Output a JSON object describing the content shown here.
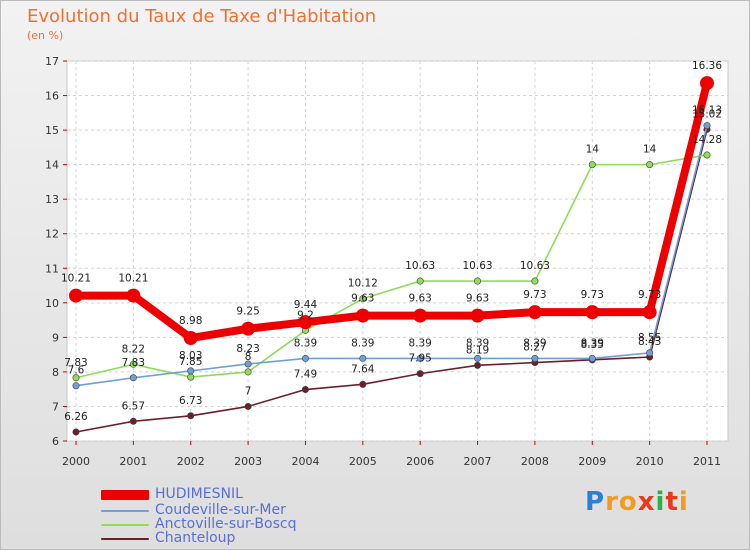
{
  "header": {
    "title": "Evolution du Taux de Taxe d'Habitation",
    "subtitle": "(en %)"
  },
  "chart_data": {
    "type": "line",
    "categories": [
      "2000",
      "2001",
      "2002",
      "2003",
      "2004",
      "2005",
      "2006",
      "2007",
      "2008",
      "2009",
      "2010",
      "2011"
    ],
    "y_ticks": [
      "6",
      "7",
      "8",
      "9",
      "10",
      "11",
      "12",
      "13",
      "14",
      "15",
      "16",
      "17"
    ],
    "ylim": [
      6,
      17
    ],
    "grid": true,
    "legend_position": "bottom-left",
    "series": [
      {
        "name": "HUDIMESNIL",
        "color": "#ee0000",
        "values": [
          10.21,
          10.21,
          8.98,
          9.25,
          9.44,
          9.63,
          9.63,
          9.63,
          9.73,
          9.73,
          9.73,
          16.36
        ],
        "labels": [
          "10.21",
          "10.21",
          "8.98",
          "9.25",
          "9.44",
          "9.63",
          "9.63",
          "9.63",
          "9.73",
          "9.73",
          "9.73",
          "16.36"
        ]
      },
      {
        "name": "Coudeville-sur-Mer",
        "color": "#6f9fd8",
        "values": [
          7.6,
          7.83,
          8.03,
          8.23,
          8.39,
          8.39,
          8.39,
          8.39,
          8.39,
          8.39,
          8.55,
          15.13
        ],
        "labels": [
          "7.6",
          "7.83",
          "8.03",
          "8.23",
          "8.39",
          "8.39",
          "8.39",
          "8.39",
          "8.39",
          "8.39",
          "8.55",
          "15.13"
        ]
      },
      {
        "name": "Anctoville-sur-Boscq",
        "color": "#8fdc5a",
        "values": [
          7.83,
          8.22,
          7.85,
          8,
          9.2,
          10.12,
          10.63,
          10.63,
          10.63,
          14,
          14,
          14.28
        ],
        "labels": [
          "7.83",
          "8.22",
          "7.85",
          "8",
          "9.2",
          "10.12",
          "10.63",
          "10.63",
          "10.63",
          "14",
          "14",
          "14.28"
        ]
      },
      {
        "name": "Chanteloup",
        "color": "#6b1f2a",
        "values": [
          6.26,
          6.57,
          6.73,
          7,
          7.49,
          7.64,
          7.95,
          8.19,
          8.27,
          8.35,
          8.43,
          15.02
        ],
        "labels": [
          "6.26",
          "6.57",
          "6.73",
          "7",
          "7.49",
          "7.64",
          "7.95",
          "8.19",
          "8.27",
          "8.35",
          "8.43",
          "15.02"
        ]
      }
    ]
  },
  "logo": {
    "letters": [
      "P",
      "r",
      "o",
      "x",
      "i",
      "t",
      "i"
    ],
    "colors": [
      "#2b7fd4",
      "#f39a1f",
      "#f39a1f",
      "#e8391a",
      "#2bb24c",
      "#e8391a",
      "#f39a1f"
    ]
  }
}
